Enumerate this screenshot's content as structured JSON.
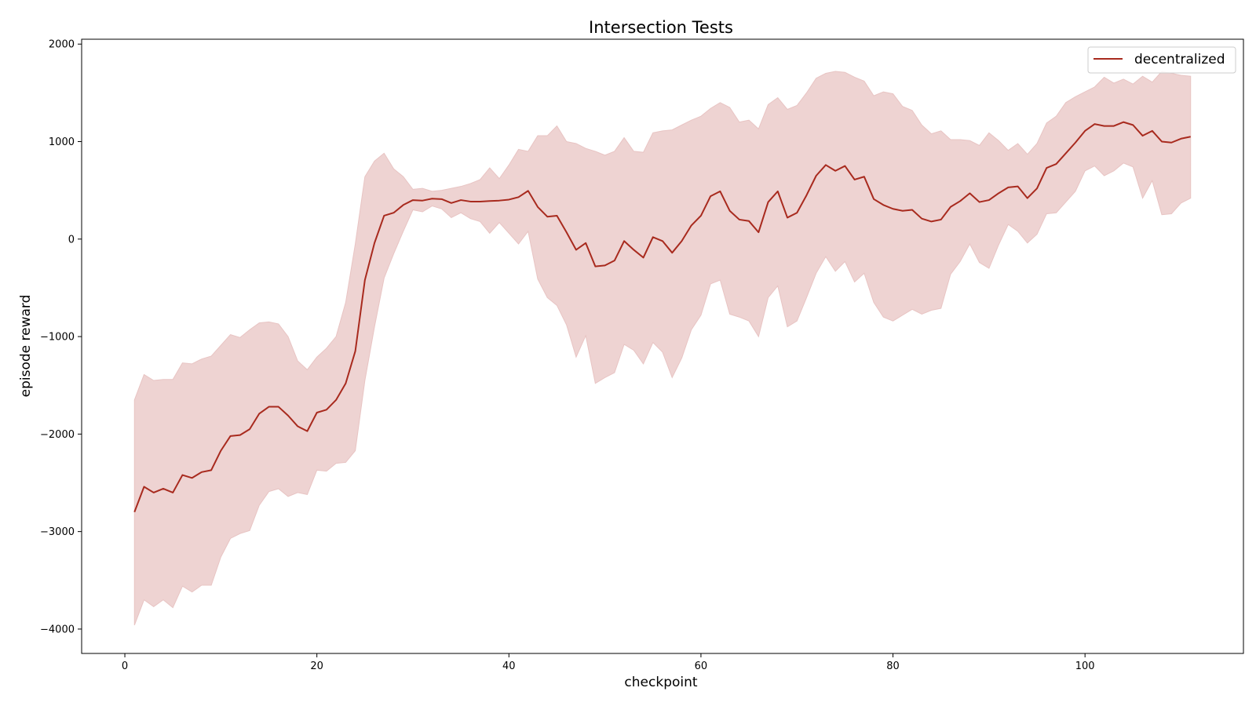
{
  "chart_data": {
    "type": "line",
    "title": "Intersection Tests",
    "xlabel": "checkpoint",
    "ylabel": "episode reward",
    "xlim": [
      -4.5,
      116.5
    ],
    "ylim": [
      -4250,
      2050
    ],
    "xticks": [
      0,
      20,
      40,
      60,
      80,
      100
    ],
    "yticks": [
      -4000,
      -3000,
      -2000,
      -1000,
      0,
      1000,
      2000
    ],
    "xtick_labels": [
      "0",
      "20",
      "40",
      "60",
      "80",
      "100"
    ],
    "ytick_labels": [
      "−4000",
      "−3000",
      "−2000",
      "−1000",
      "0",
      "1000",
      "2000"
    ],
    "grid": false,
    "legend_position": "top-right",
    "colors": {
      "line": "#a82a1e",
      "band": "#e8c4c3"
    },
    "series": [
      {
        "name": "decentralized",
        "x": [
          1,
          2,
          3,
          4,
          5,
          6,
          7,
          8,
          9,
          10,
          11,
          12,
          13,
          14,
          15,
          16,
          17,
          18,
          19,
          20,
          21,
          22,
          23,
          24,
          25,
          26,
          27,
          28,
          29,
          30,
          31,
          32,
          33,
          34,
          35,
          36,
          37,
          38,
          39,
          40,
          41,
          42,
          43,
          44,
          45,
          46,
          47,
          48,
          49,
          50,
          51,
          52,
          53,
          54,
          55,
          56,
          57,
          58,
          59,
          60,
          61,
          62,
          63,
          64,
          65,
          66,
          67,
          68,
          69,
          70,
          71,
          72,
          73,
          74,
          75,
          76,
          77,
          78,
          79,
          80,
          81,
          82,
          83,
          84,
          85,
          86,
          87,
          88,
          89,
          90,
          91,
          92,
          93,
          94,
          95,
          96,
          97,
          98,
          99,
          100,
          101,
          102,
          103,
          104,
          105,
          106,
          107,
          108,
          109,
          110,
          111
        ],
        "y": [
          -2800,
          -2540,
          -2600,
          -2560,
          -2600,
          -2420,
          -2450,
          -2390,
          -2370,
          -2170,
          -2020,
          -2010,
          -1950,
          -1790,
          -1720,
          -1720,
          -1810,
          -1920,
          -1970,
          -1780,
          -1750,
          -1650,
          -1480,
          -1150,
          -420,
          -40,
          240,
          270,
          350,
          400,
          395,
          415,
          410,
          370,
          400,
          385,
          385,
          390,
          395,
          405,
          430,
          495,
          330,
          230,
          240,
          70,
          -110,
          -40,
          -280,
          -270,
          -220,
          -20,
          -110,
          -190,
          20,
          -20,
          -140,
          -20,
          140,
          240,
          440,
          490,
          290,
          200,
          185,
          70,
          380,
          490,
          220,
          270,
          450,
          650,
          760,
          700,
          750,
          610,
          640,
          410,
          350,
          310,
          290,
          300,
          210,
          180,
          200,
          330,
          390,
          470,
          380,
          400,
          470,
          530,
          540,
          420,
          520,
          730,
          770,
          880,
          990,
          1110,
          1180,
          1160,
          1160,
          1200,
          1170,
          1060,
          1110,
          1000,
          990,
          1030,
          1050
        ],
        "upper": [
          -1650,
          -1390,
          -1450,
          -1440,
          -1440,
          -1270,
          -1280,
          -1230,
          -1200,
          -1090,
          -980,
          -1010,
          -930,
          -860,
          -850,
          -870,
          -1000,
          -1250,
          -1340,
          -1210,
          -1120,
          -1000,
          -650,
          -50,
          640,
          800,
          880,
          720,
          640,
          510,
          520,
          490,
          500,
          520,
          540,
          570,
          610,
          730,
          620,
          760,
          920,
          900,
          1060,
          1060,
          1160,
          1000,
          980,
          930,
          900,
          860,
          900,
          1040,
          900,
          890,
          1090,
          1110,
          1120,
          1170,
          1220,
          1260,
          1340,
          1400,
          1350,
          1200,
          1220,
          1130,
          1380,
          1450,
          1330,
          1370,
          1500,
          1650,
          1700,
          1720,
          1710,
          1660,
          1620,
          1470,
          1510,
          1490,
          1360,
          1320,
          1170,
          1080,
          1110,
          1020,
          1020,
          1010,
          960,
          1090,
          1010,
          910,
          980,
          870,
          980,
          1190,
          1260,
          1400,
          1460,
          1510,
          1560,
          1660,
          1600,
          1640,
          1590,
          1670,
          1610,
          1720,
          1700,
          1680,
          1670
        ],
        "lower": [
          -3960,
          -3700,
          -3770,
          -3700,
          -3780,
          -3560,
          -3620,
          -3550,
          -3550,
          -3260,
          -3070,
          -3020,
          -2990,
          -2730,
          -2590,
          -2560,
          -2640,
          -2600,
          -2620,
          -2370,
          -2380,
          -2300,
          -2290,
          -2170,
          -1450,
          -900,
          -400,
          -150,
          80,
          300,
          280,
          340,
          310,
          220,
          270,
          210,
          180,
          60,
          170,
          60,
          -50,
          80,
          -410,
          -600,
          -680,
          -880,
          -1210,
          -990,
          -1480,
          -1420,
          -1370,
          -1080,
          -1140,
          -1280,
          -1060,
          -1160,
          -1420,
          -1220,
          -930,
          -780,
          -460,
          -420,
          -770,
          -800,
          -840,
          -1000,
          -600,
          -480,
          -900,
          -840,
          -600,
          -350,
          -180,
          -330,
          -230,
          -440,
          -350,
          -650,
          -800,
          -840,
          -780,
          -720,
          -770,
          -730,
          -710,
          -360,
          -230,
          -50,
          -240,
          -300,
          -60,
          150,
          80,
          -40,
          50,
          260,
          270,
          380,
          490,
          700,
          750,
          650,
          700,
          780,
          740,
          420,
          600,
          250,
          260,
          370,
          420
        ]
      }
    ]
  }
}
